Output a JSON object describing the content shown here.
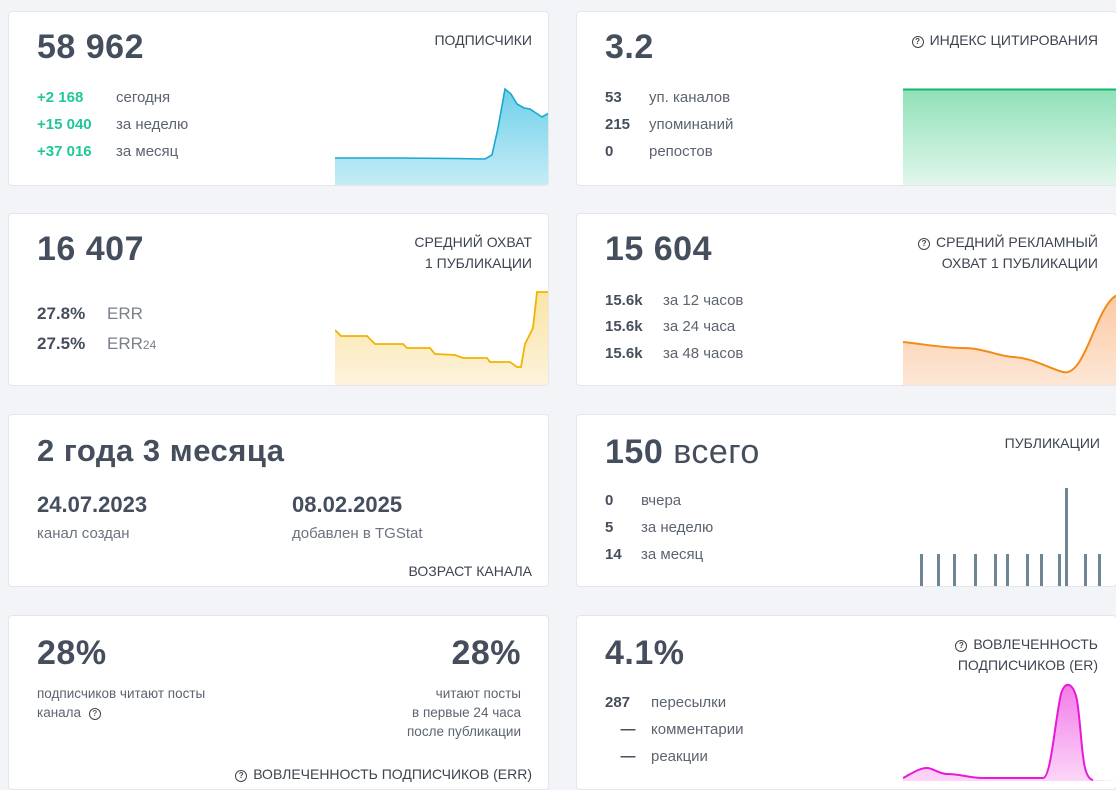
{
  "subscribers": {
    "value": "58 962",
    "label": "ПОДПИСЧИКИ",
    "rows": [
      {
        "value": "+2 168",
        "text": "сегодня"
      },
      {
        "value": "+15 040",
        "text": "за неделю"
      },
      {
        "value": "+37 016",
        "text": "за месяц"
      }
    ]
  },
  "citation": {
    "value": "3.2",
    "label": "ИНДЕКС ЦИТИРОВАНИЯ",
    "rows": [
      {
        "value": "53",
        "text": "уп. каналов"
      },
      {
        "value": "215",
        "text": "упоминаний"
      },
      {
        "value": "0",
        "text": "репостов"
      }
    ]
  },
  "avg_reach": {
    "value": "16 407",
    "label_line1": "СРЕДНИЙ ОХВАТ",
    "label_line2": "1 ПУБЛИКАЦИИ",
    "err_value": "27.8%",
    "err_label": "ERR",
    "err24_value": "27.5%",
    "err24_label": "ERR",
    "err24_sub": "24"
  },
  "ad_reach": {
    "value": "15 604",
    "label_line1": "СРЕДНИЙ РЕКЛАМНЫЙ",
    "label_line2": "ОХВАТ 1 ПУБЛИКАЦИИ",
    "rows": [
      {
        "value": "15.6k",
        "text": "за 12 часов"
      },
      {
        "value": "15.6k",
        "text": "за 24 часа"
      },
      {
        "value": "15.6k",
        "text": "за 48 часов"
      }
    ]
  },
  "age": {
    "value": "2 года 3 месяца",
    "created_date": "24.07.2023",
    "created_label": "канал создан",
    "added_date": "08.02.2025",
    "added_label": "добавлен в TGStat",
    "label": "ВОЗРАСТ КАНАЛА"
  },
  "posts": {
    "value": "150",
    "value_suffix": "всего",
    "label": "ПУБЛИКАЦИИ",
    "rows": [
      {
        "value": "0",
        "text": "вчера"
      },
      {
        "value": "5",
        "text": "за неделю"
      },
      {
        "value": "14",
        "text": "за месяц"
      }
    ]
  },
  "err_engagement": {
    "left_value": "28%",
    "left_line1": "подписчиков читают посты",
    "left_line2": "канала",
    "right_value": "28%",
    "right_line1": "читают посты",
    "right_line2": "в первые 24 часа",
    "right_line3": "после публикации",
    "label": "ВОВЛЕЧЕННОСТЬ ПОДПИСЧИКОВ (ERR)"
  },
  "er": {
    "value": "4.1%",
    "label_line1": "ВОВЛЕЧЕННОСТЬ",
    "label_line2": "ПОДПИСЧИКОВ (ER)",
    "rows": [
      {
        "value": "287",
        "text": "пересылки"
      },
      {
        "value": "—",
        "text": "комментарии"
      },
      {
        "value": "—",
        "text": "реакции"
      }
    ]
  },
  "colors": {
    "green": "#1fc79a",
    "cyan": "#1ba7cf",
    "yellow": "#f0b400",
    "orange": "#f28b1a",
    "magenta": "#e81ad8",
    "bars": "#6e8594"
  }
}
